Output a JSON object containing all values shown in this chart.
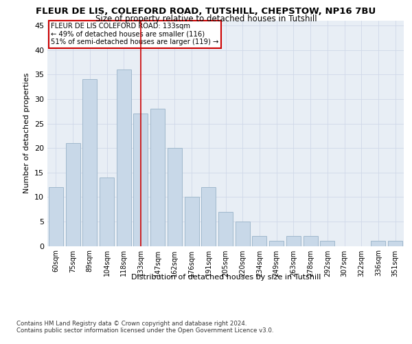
{
  "title": "FLEUR DE LIS, COLEFORD ROAD, TUTSHILL, CHEPSTOW, NP16 7BU",
  "subtitle": "Size of property relative to detached houses in Tutshill",
  "xlabel": "Distribution of detached houses by size in Tutshill",
  "ylabel": "Number of detached properties",
  "categories": [
    "60sqm",
    "75sqm",
    "89sqm",
    "104sqm",
    "118sqm",
    "133sqm",
    "147sqm",
    "162sqm",
    "176sqm",
    "191sqm",
    "205sqm",
    "220sqm",
    "234sqm",
    "249sqm",
    "263sqm",
    "278sqm",
    "292sqm",
    "307sqm",
    "322sqm",
    "336sqm",
    "351sqm"
  ],
  "values": [
    12,
    21,
    34,
    14,
    36,
    27,
    28,
    20,
    10,
    12,
    7,
    5,
    2,
    1,
    2,
    2,
    1,
    0,
    0,
    1,
    1
  ],
  "bar_color": "#c8d8e8",
  "bar_edge_color": "#a0b8cc",
  "marker_index": 5,
  "marker_line_color": "#cc0000",
  "annotation_line1": "FLEUR DE LIS COLEFORD ROAD: 133sqm",
  "annotation_line2": "← 49% of detached houses are smaller (116)",
  "annotation_line3": "51% of semi-detached houses are larger (119) →",
  "annotation_box_color": "#ffffff",
  "annotation_box_edge_color": "#cc0000",
  "ylim": [
    0,
    46
  ],
  "yticks": [
    0,
    5,
    10,
    15,
    20,
    25,
    30,
    35,
    40,
    45
  ],
  "grid_color": "#d0d8e8",
  "background_color": "#e8eef5",
  "footer_line1": "Contains HM Land Registry data © Crown copyright and database right 2024.",
  "footer_line2": "Contains public sector information licensed under the Open Government Licence v3.0."
}
